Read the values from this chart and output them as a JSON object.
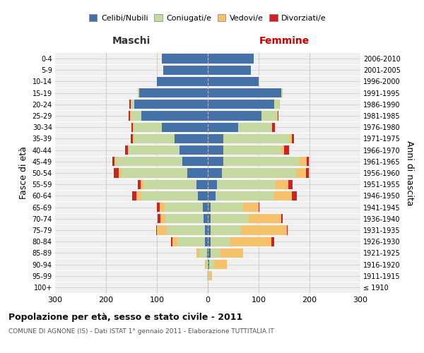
{
  "age_groups": [
    "100+",
    "95-99",
    "90-94",
    "85-89",
    "80-84",
    "75-79",
    "70-74",
    "65-69",
    "60-64",
    "55-59",
    "50-54",
    "45-49",
    "40-44",
    "35-39",
    "30-34",
    "25-29",
    "20-24",
    "15-19",
    "10-14",
    "5-9",
    "0-4"
  ],
  "birth_years": [
    "≤ 1910",
    "1911-1915",
    "1916-1920",
    "1921-1925",
    "1926-1930",
    "1931-1935",
    "1936-1940",
    "1941-1945",
    "1946-1950",
    "1951-1955",
    "1956-1960",
    "1961-1965",
    "1966-1970",
    "1971-1975",
    "1976-1980",
    "1981-1985",
    "1986-1990",
    "1991-1995",
    "1996-2000",
    "2001-2005",
    "2006-2010"
  ],
  "maschi": {
    "celibi": [
      0,
      0,
      0,
      2,
      5,
      5,
      8,
      10,
      20,
      22,
      40,
      50,
      55,
      65,
      90,
      130,
      145,
      135,
      100,
      88,
      90
    ],
    "coniugati": [
      0,
      1,
      3,
      15,
      55,
      75,
      75,
      75,
      110,
      105,
      130,
      130,
      100,
      80,
      55,
      20,
      5,
      2,
      0,
      0,
      0
    ],
    "vedovi": [
      0,
      0,
      2,
      5,
      10,
      20,
      10,
      10,
      10,
      5,
      5,
      3,
      2,
      2,
      2,
      3,
      2,
      0,
      0,
      0,
      0
    ],
    "divorziati": [
      0,
      0,
      0,
      0,
      2,
      2,
      5,
      5,
      8,
      5,
      10,
      5,
      5,
      5,
      3,
      2,
      2,
      0,
      0,
      0,
      0
    ]
  },
  "femmine": {
    "nubili": [
      0,
      0,
      3,
      5,
      5,
      5,
      5,
      5,
      15,
      18,
      28,
      30,
      30,
      30,
      60,
      105,
      130,
      145,
      100,
      85,
      90
    ],
    "coniugate": [
      1,
      3,
      10,
      20,
      40,
      60,
      75,
      65,
      115,
      115,
      145,
      150,
      115,
      130,
      65,
      30,
      10,
      2,
      0,
      0,
      0
    ],
    "vedove": [
      1,
      5,
      25,
      45,
      80,
      90,
      65,
      30,
      35,
      25,
      20,
      15,
      5,
      5,
      2,
      2,
      2,
      0,
      0,
      0,
      0
    ],
    "divorziate": [
      0,
      0,
      0,
      0,
      5,
      2,
      2,
      2,
      10,
      8,
      5,
      3,
      10,
      5,
      5,
      2,
      0,
      0,
      0,
      0,
      0
    ]
  },
  "colors": {
    "celibi_nubili": "#4472a8",
    "coniugati": "#c5d9a0",
    "vedovi": "#f5c26b",
    "divorziati": "#cc2222"
  },
  "xlim": 300,
  "title": "Popolazione per età, sesso e stato civile - 2011",
  "subtitle": "COMUNE DI AGNONE (IS) - Dati ISTAT 1° gennaio 2011 - Elaborazione TUTTITALIA.IT",
  "ylabel_left": "Fasce di età",
  "ylabel_right": "Anni di nascita",
  "xlabel_left": "Maschi",
  "xlabel_right": "Femmine",
  "legend_labels": [
    "Celibi/Nubili",
    "Coniugati/e",
    "Vedovi/e",
    "Divorziati/e"
  ],
  "background_color": "#ffffff",
  "plot_bg_color": "#f0f0f0",
  "grid_color": "#cccccc"
}
